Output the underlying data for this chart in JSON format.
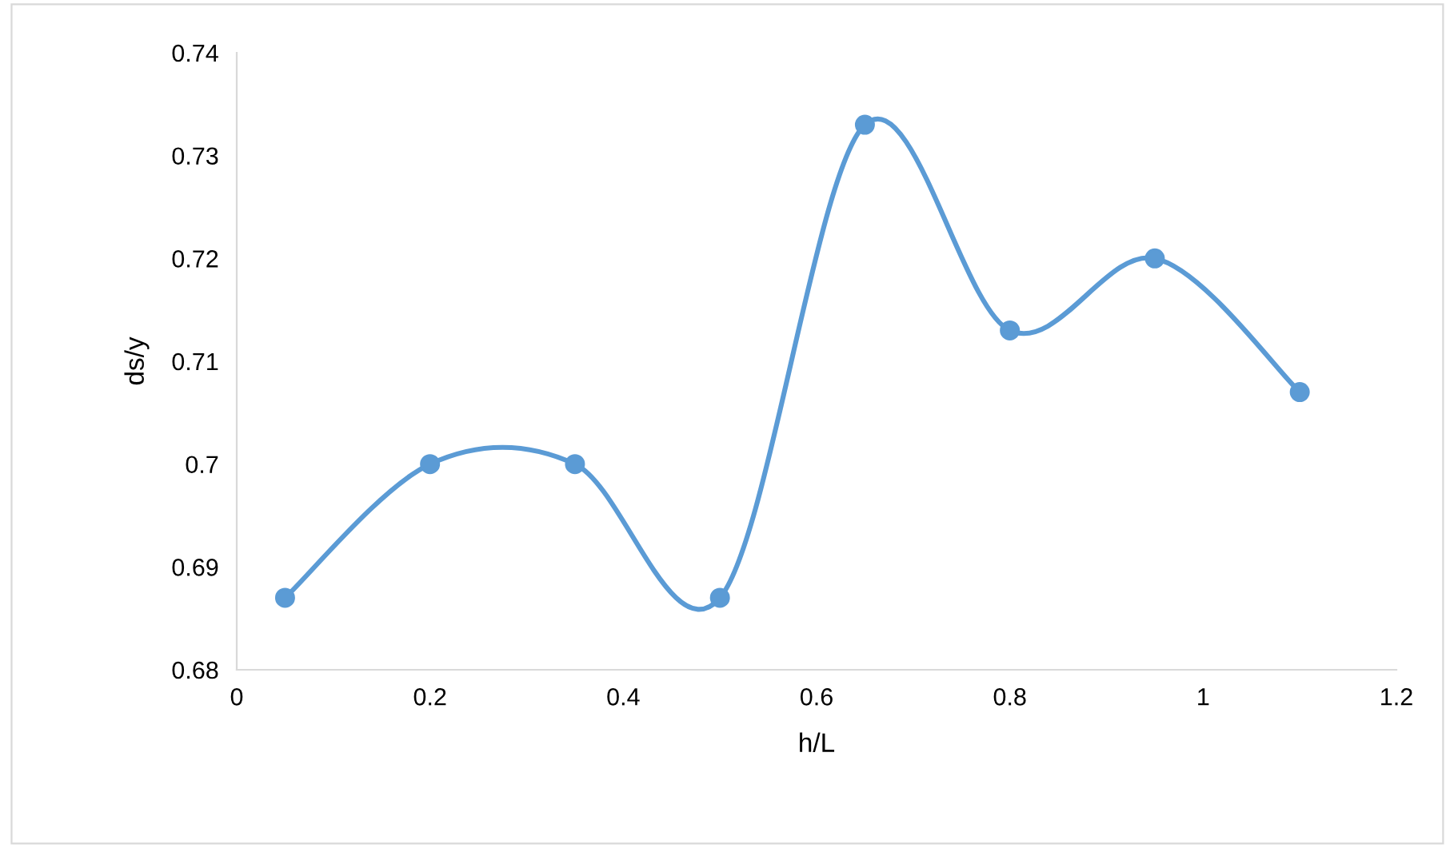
{
  "chart_data": {
    "type": "line",
    "xlabel": "h/L",
    "ylabel": "ds/y",
    "x": [
      0.05,
      0.2,
      0.35,
      0.5,
      0.65,
      0.8,
      0.95,
      1.1
    ],
    "series": [
      {
        "color": "#5b9bd5",
        "values": [
          0.687,
          0.7,
          0.7,
          0.687,
          0.733,
          0.713,
          0.72,
          0.707
        ]
      }
    ],
    "xlim": [
      0,
      1.2
    ],
    "xticks": [
      0,
      0.2,
      0.4,
      0.6,
      0.8,
      1,
      1.2
    ],
    "ylim": [
      0.68,
      0.74
    ],
    "yticks": [
      0.68,
      0.69,
      0.7,
      0.71,
      0.72,
      0.73,
      0.74
    ],
    "grid": false,
    "legend": false,
    "marker": "circle",
    "line_style": "solid"
  }
}
